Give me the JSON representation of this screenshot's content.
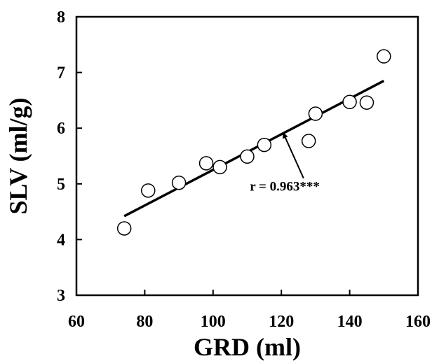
{
  "chart_data": {
    "type": "scatter",
    "xlabel": "GRD (ml)",
    "ylabel": "SLV (ml/g)",
    "xlim": [
      60,
      160
    ],
    "ylim": [
      3,
      8
    ],
    "xticks": [
      60,
      80,
      100,
      120,
      140,
      160
    ],
    "yticks": [
      3,
      4,
      5,
      6,
      7,
      8
    ],
    "grid": false,
    "points": [
      {
        "x": 74,
        "y": 4.2
      },
      {
        "x": 81,
        "y": 4.88
      },
      {
        "x": 90,
        "y": 5.02
      },
      {
        "x": 98,
        "y": 5.37
      },
      {
        "x": 102,
        "y": 5.3
      },
      {
        "x": 110,
        "y": 5.49
      },
      {
        "x": 115,
        "y": 5.7
      },
      {
        "x": 128,
        "y": 5.77
      },
      {
        "x": 130,
        "y": 6.26
      },
      {
        "x": 140,
        "y": 6.47
      },
      {
        "x": 145,
        "y": 6.46
      },
      {
        "x": 150,
        "y": 7.29
      }
    ],
    "fit_line": {
      "x1": 74,
      "y1": 4.42,
      "x2": 150,
      "y2": 6.85
    },
    "annotation": {
      "text": "r = 0.963***",
      "text_x": 121,
      "text_y": 4.88,
      "arrow_from": {
        "x": 126.5,
        "y": 5.1
      },
      "arrow_to": {
        "x": 120.5,
        "y": 5.92
      }
    }
  }
}
